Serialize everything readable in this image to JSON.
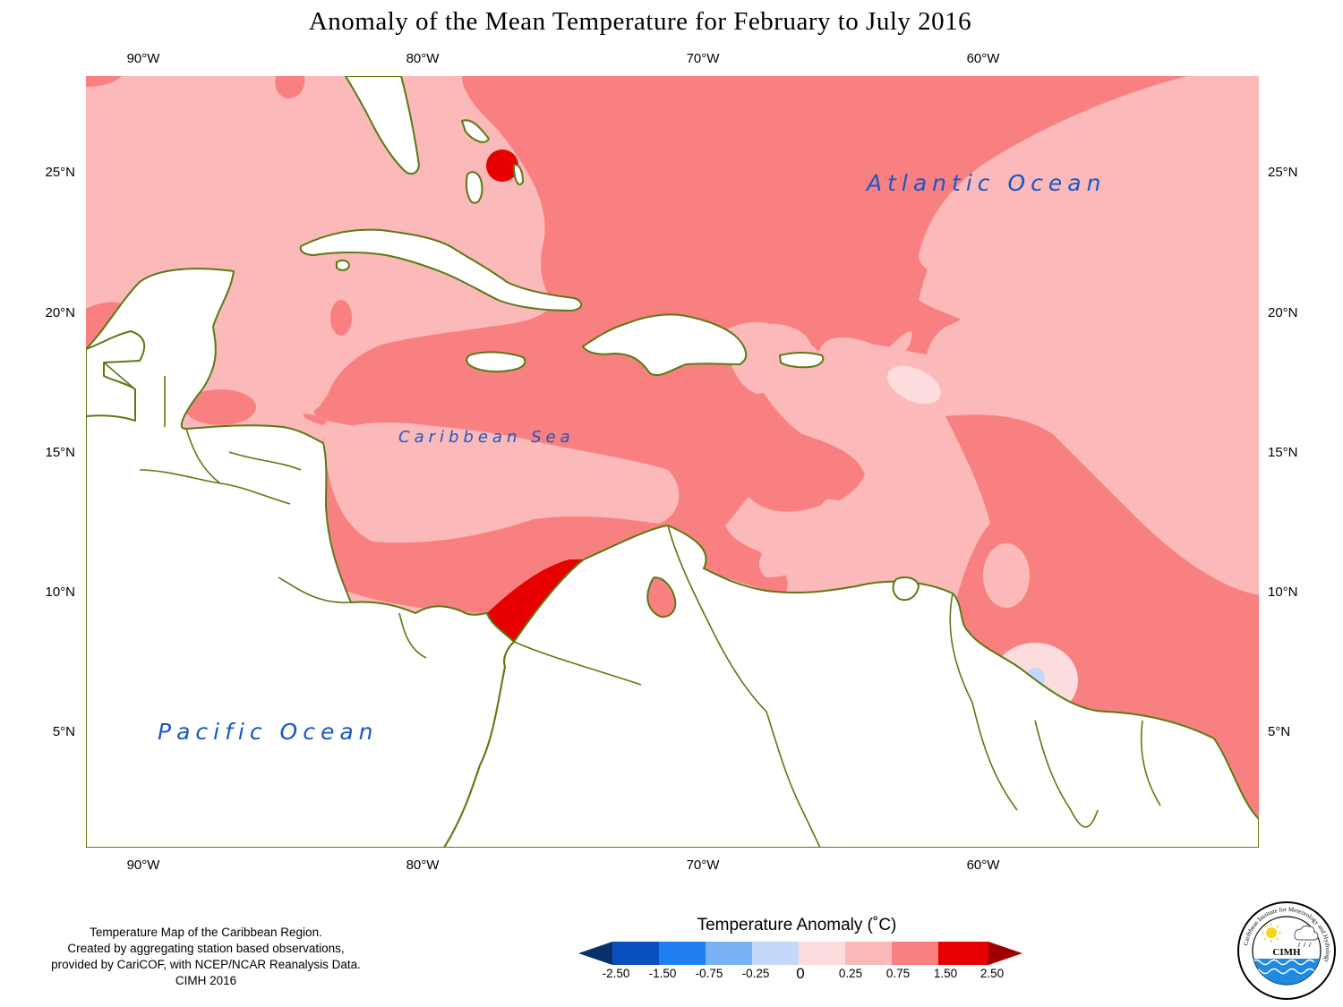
{
  "title": "Anomaly of the Mean Temperature for February to July 2016",
  "axes": {
    "longitude_labels": [
      "90°W",
      "80°W",
      "70°W",
      "60°W"
    ],
    "latitude_labels": [
      "25°N",
      "20°N",
      "15°N",
      "10°N",
      "5°N"
    ]
  },
  "labels": {
    "atlantic": "Atlantic Ocean",
    "caribbean": "Caribbean Sea",
    "pacific": "Pacific Ocean"
  },
  "footer": {
    "line1": "Temperature Map of the Caribbean Region.",
    "line2": "Created by aggregating station based observations,",
    "line3": "provided by CariCOF, with NCEP/NCAR Reanalysis Data.",
    "line4": "CIMH 2016"
  },
  "legend": {
    "title": "Temperature Anomaly (˚C)",
    "ticks": [
      "-2.50",
      "-1.50",
      "-0.75",
      "-0.25",
      "0",
      "0.25",
      "0.75",
      "1.50",
      "2.50"
    ],
    "colors": [
      "#08306b",
      "#0a4fbf",
      "#1f7fef",
      "#78b2f4",
      "#c4d8fb",
      "#fcdcdc",
      "#fbb9b9",
      "#f98080",
      "#e60000",
      "#a00000"
    ]
  },
  "logo": {
    "ring_text": "Caribbean Institute for Meteorology and Hydrology",
    "acronym": "CIMH"
  },
  "colors": {
    "land": "#ffffff",
    "coastline": "#5a7a12",
    "anomaly_0_25": "#fcdcdc",
    "anomaly_0_75": "#fbb9b9",
    "anomaly_1_50": "#f98080",
    "anomaly_2_50": "#e60000",
    "anomaly_neg": "#c4d8fb"
  }
}
